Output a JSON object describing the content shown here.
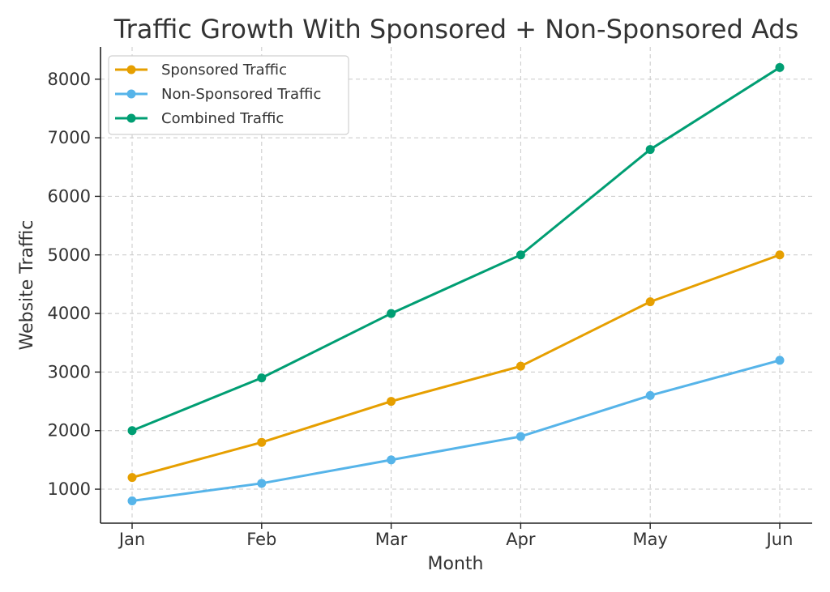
{
  "chart_data": {
    "type": "line",
    "title": "Traffic Growth With Sponsored + Non-Sponsored Ads",
    "xlabel": "Month",
    "ylabel": "Website Traffic",
    "categories": [
      "Jan",
      "Feb",
      "Mar",
      "Apr",
      "May",
      "Jun"
    ],
    "ylim": [
      420,
      8550
    ],
    "yticks": [
      1000,
      2000,
      3000,
      4000,
      5000,
      6000,
      7000,
      8000
    ],
    "grid": true,
    "legend_position": "top-left",
    "series": [
      {
        "name": "Sponsored Traffic",
        "color": "#E69F00",
        "values": [
          1200,
          1800,
          2500,
          3100,
          4200,
          5000
        ]
      },
      {
        "name": "Non-Sponsored Traffic",
        "color": "#56B4E9",
        "values": [
          800,
          1100,
          1500,
          1900,
          2600,
          3200
        ]
      },
      {
        "name": "Combined Traffic",
        "color": "#009E73",
        "values": [
          2000,
          2900,
          4000,
          5000,
          6800,
          8200
        ]
      }
    ]
  }
}
